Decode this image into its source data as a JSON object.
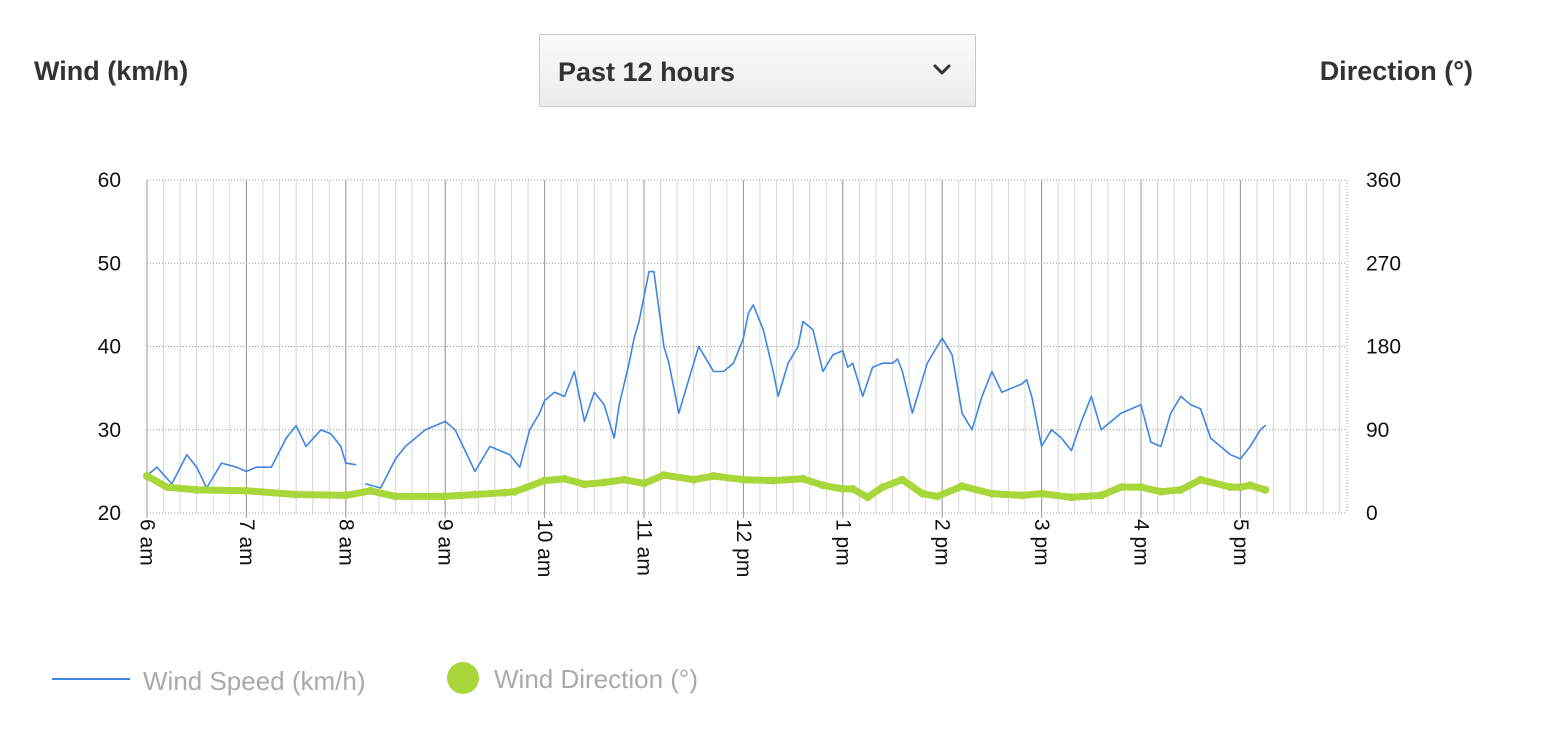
{
  "header": {
    "left_label": "Wind (km/h)",
    "right_label": "Direction (°)",
    "range_select": {
      "value": "Past 12 hours"
    }
  },
  "legend": {
    "speed": "Wind Speed (km/h)",
    "direction": "Wind Direction (°)"
  },
  "colors": {
    "speed": "#3d87e0",
    "direction": "#a9d63a",
    "grid": "#bbbbbb"
  },
  "chart_data": {
    "type": "line",
    "x_ticks": [
      "6 am",
      "7 am",
      "8 am",
      "9 am",
      "10 am",
      "11 am",
      "12 pm",
      "1 pm",
      "2 pm",
      "3 pm",
      "4 pm",
      "5 pm"
    ],
    "y_left": {
      "ticks": [
        "20",
        "30",
        "40",
        "50",
        "60"
      ],
      "ylim": [
        20,
        60
      ]
    },
    "y_right": {
      "ticks": [
        "0",
        "90",
        "180",
        "270",
        "360"
      ],
      "ylim": [
        0,
        360
      ]
    },
    "grid": true,
    "legend_position": "bottom-left",
    "series": [
      {
        "name": "Wind Speed (km/h)",
        "axis": "left",
        "x_hours": [
          6.0,
          6.1,
          6.25,
          6.4,
          6.5,
          6.6,
          6.75,
          6.9,
          7.0,
          7.1,
          7.25,
          7.4,
          7.5,
          7.6,
          7.75,
          7.85,
          7.95,
          8.0,
          8.1
        ],
        "values": [
          24.5,
          25.5,
          23.5,
          27,
          25.5,
          23,
          26,
          25.5,
          25,
          25.5,
          25.5,
          29,
          30.5,
          28,
          30,
          29.5,
          28,
          26,
          25.8
        ]
      },
      {
        "name": "Wind Speed (km/h)",
        "axis": "left",
        "x_hours": [
          8.2,
          8.35,
          8.5,
          8.6,
          8.7,
          8.8,
          8.9,
          9.0,
          9.1,
          9.2,
          9.3,
          9.45,
          9.55,
          9.65,
          9.75,
          9.85,
          9.95,
          10.0,
          10.1,
          10.2,
          10.3,
          10.4,
          10.5,
          10.6,
          10.7,
          10.75,
          10.85,
          10.9,
          10.95,
          11.05,
          11.1,
          11.2,
          11.25,
          11.35,
          11.45,
          11.55,
          11.6,
          11.7,
          11.8,
          11.9,
          12.0,
          12.05,
          12.1,
          12.2,
          12.3,
          12.35,
          12.45,
          12.55,
          12.6,
          12.7,
          12.8,
          12.9,
          13.0,
          13.05,
          13.1,
          13.2,
          13.3,
          13.4,
          13.5,
          13.55,
          13.6,
          13.7,
          13.8,
          13.85,
          13.95,
          14.0,
          14.1,
          14.2,
          14.3,
          14.4,
          14.5,
          14.6,
          14.7,
          14.8,
          14.85,
          14.9,
          15.0,
          15.1,
          15.2,
          15.3,
          15.4,
          15.5,
          15.6,
          15.7,
          15.8,
          15.9,
          16.0,
          16.1,
          16.2,
          16.3,
          16.4,
          16.5,
          16.6,
          16.7,
          16.8,
          16.9,
          17.0,
          17.1,
          17.2,
          17.25
        ],
        "values": [
          23.5,
          23,
          26.5,
          28,
          29,
          30,
          30.5,
          31,
          30,
          27.5,
          25,
          28,
          27.5,
          27,
          25.5,
          30,
          32,
          33.5,
          34.5,
          34,
          37,
          31,
          34.5,
          33,
          29,
          33,
          38,
          41,
          43,
          49,
          49,
          40,
          38,
          32,
          36,
          40,
          39,
          37,
          37,
          38,
          41,
          44,
          45,
          42,
          37,
          34,
          38,
          40,
          43,
          42,
          37,
          39,
          39.5,
          37.5,
          38,
          34,
          37.5,
          38,
          38,
          38.5,
          37,
          32,
          36,
          38,
          40,
          41,
          39,
          32,
          30,
          34,
          37,
          34.5,
          35,
          35.5,
          36,
          34,
          28,
          30,
          29,
          27.5,
          31,
          34,
          30,
          31,
          32,
          32.5,
          33,
          28.5,
          28,
          32,
          34,
          33,
          32.5,
          29,
          28,
          27,
          26.5,
          28,
          30,
          30.5
        ]
      },
      {
        "name": "Wind Direction (°)",
        "axis": "right",
        "x_hours": [
          6.0,
          6.2,
          6.5,
          7.0,
          7.5,
          8.0,
          8.25,
          8.5,
          9.0,
          9.3,
          9.6,
          9.7,
          10.0,
          10.2,
          10.4,
          10.6,
          10.8,
          11.0,
          11.2,
          11.5,
          11.7,
          12.0,
          12.3,
          12.6,
          12.8,
          13.0,
          13.1,
          13.25,
          13.4,
          13.6,
          13.8,
          13.95,
          14.2,
          14.5,
          14.8,
          15.0,
          15.3,
          15.6,
          15.8,
          16.0,
          16.2,
          16.4,
          16.6,
          16.9,
          17.0,
          17.1,
          17.25
        ],
        "values": [
          40,
          28,
          25,
          24,
          20,
          19,
          24,
          18,
          18,
          20,
          22,
          23,
          35,
          37,
          31,
          33,
          36,
          32,
          41,
          36,
          40,
          36,
          35,
          37,
          30,
          26,
          26,
          17,
          28,
          36,
          21,
          18,
          29,
          21,
          19,
          21,
          17,
          19,
          28,
          28,
          23,
          25,
          36,
          28,
          28,
          30,
          25
        ]
      }
    ]
  }
}
